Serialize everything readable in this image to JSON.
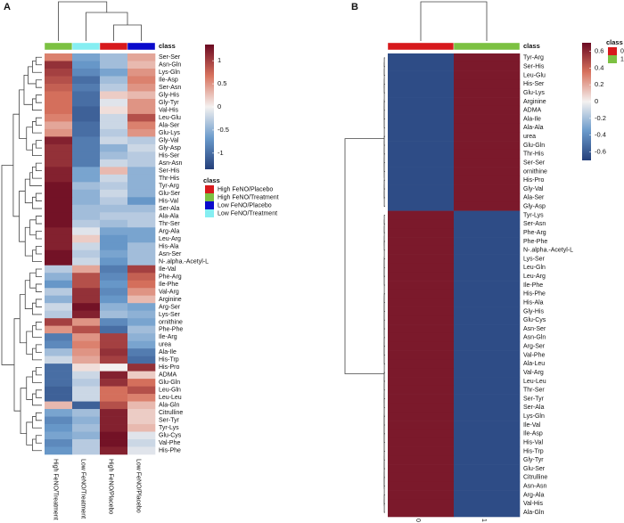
{
  "chart_data": [
    {
      "type": "heatmap",
      "panel_label": "A",
      "annotation_title": "class",
      "legend_title": "class",
      "columns": [
        "High FeNO/Treatment",
        "Low FeNO/Treatment",
        "High FeNO/Placebo",
        "Low FeNO/Placebo"
      ],
      "classes": [
        {
          "name": "High FeNO/Placebo",
          "color": "#d7191c"
        },
        {
          "name": "High FeNO/Treatment",
          "color": "#7cc142"
        },
        {
          "name": "Low FeNO/Placebo",
          "color": "#0a0acc"
        },
        {
          "name": "Low FeNO/Treatment",
          "color": "#86eef2"
        }
      ],
      "rows": [
        "Ser-Ser",
        "Asn-Gln",
        "Lys-Gln",
        "Ile-Asp",
        "Ser-Asn",
        "Gly-His",
        "Gly-Tyr",
        "Val-His",
        "Leu-Glu",
        "Ala-Ser",
        "Glu-Lys",
        "Gly-Val",
        "Gly-Asp",
        "His-Ser",
        "Asn-Asn",
        "Ser-His",
        "Thr-His",
        "Tyr-Arg",
        "Glu-Ser",
        "His-Val",
        "Ser-Ala",
        "Ala-Ala",
        "Thr-Ser",
        "Arg-Ala",
        "Leu-Arg",
        "His-Ala",
        "Asn-Ser",
        "N-.alpha.-Acetyl-L",
        "Ile-Val",
        "Phe-Arg",
        "Ile-Phe",
        "Val-Arg",
        "Arginine",
        "Arg-Ser",
        "Lys-Ser",
        "ornithine",
        "Phe-Phe",
        "Ile-Arg",
        "urea",
        "Ala-Ile",
        "His-Trp",
        "His-Pro",
        "ADMA",
        "Glu-Gln",
        "Leu-Gln",
        "Leu-Leu",
        "Ala-Gln",
        "Citrulline",
        "Ser-Tyr",
        "Tyr-Lys",
        "Glu-Cys",
        "Val-Phe",
        "His-Phe"
      ],
      "values": [
        [
          0.6,
          -0.6,
          -0.4,
          0.4
        ],
        [
          1.1,
          -0.7,
          -0.4,
          0.3
        ],
        [
          1.0,
          -0.8,
          -0.6,
          0.5
        ],
        [
          0.9,
          -1.0,
          -0.4,
          0.6
        ],
        [
          0.8,
          -0.9,
          -0.3,
          0.5
        ],
        [
          0.7,
          -1.0,
          0.2,
          0.3
        ],
        [
          0.7,
          -1.0,
          -0.1,
          0.5
        ],
        [
          0.7,
          -1.1,
          0.1,
          0.5
        ],
        [
          0.6,
          -1.1,
          -0.2,
          0.9
        ],
        [
          0.4,
          -1.0,
          -0.2,
          0.6
        ],
        [
          0.5,
          -1.0,
          -0.3,
          0.5
        ],
        [
          1.2,
          -0.9,
          -0.2,
          -0.3
        ],
        [
          1.1,
          -0.9,
          -0.5,
          -0.2
        ],
        [
          1.1,
          -0.9,
          -0.4,
          -0.3
        ],
        [
          1.1,
          -0.9,
          -0.2,
          -0.3
        ],
        [
          1.2,
          -0.6,
          0.3,
          -0.5
        ],
        [
          1.2,
          -0.6,
          -0.2,
          -0.5
        ],
        [
          1.3,
          -0.4,
          -0.3,
          -0.5
        ],
        [
          1.3,
          -0.5,
          -0.2,
          -0.5
        ],
        [
          1.3,
          -0.5,
          -0.3,
          -0.7
        ],
        [
          1.3,
          -0.4,
          -0.4,
          -0.4
        ],
        [
          1.3,
          -0.4,
          -0.3,
          -0.3
        ],
        [
          1.3,
          -0.3,
          -0.4,
          -0.3
        ],
        [
          1.2,
          -0.1,
          -0.6,
          -0.6
        ],
        [
          1.2,
          0.2,
          -0.7,
          -0.6
        ],
        [
          1.2,
          -0.2,
          -0.7,
          -0.4
        ],
        [
          1.3,
          -0.3,
          -0.6,
          -0.4
        ],
        [
          1.3,
          -0.2,
          -0.7,
          -0.4
        ],
        [
          -0.3,
          0.4,
          -0.9,
          1.0
        ],
        [
          -0.5,
          0.9,
          -0.8,
          0.8
        ],
        [
          -0.7,
          0.9,
          -0.7,
          0.7
        ],
        [
          -0.3,
          1.1,
          -0.8,
          0.5
        ],
        [
          -0.5,
          1.1,
          -0.7,
          0.3
        ],
        [
          -0.2,
          1.3,
          -0.5,
          -0.6
        ],
        [
          -0.3,
          1.2,
          -0.4,
          -0.5
        ],
        [
          1.0,
          0.5,
          -0.8,
          -0.6
        ],
        [
          0.5,
          0.9,
          -1.0,
          -0.4
        ],
        [
          -0.9,
          0.5,
          1.0,
          -0.5
        ],
        [
          -0.8,
          0.6,
          1.0,
          -0.6
        ],
        [
          -0.4,
          0.5,
          1.1,
          -0.9
        ],
        [
          -0.2,
          0.4,
          1.0,
          -1.0
        ],
        [
          -1.0,
          0.1,
          0.0,
          1.1
        ],
        [
          -1.0,
          -0.2,
          1.2,
          0.2
        ],
        [
          -1.0,
          -0.3,
          1.1,
          0.7
        ],
        [
          -1.1,
          -0.2,
          0.7,
          0.9
        ],
        [
          -1.1,
          -0.2,
          0.7,
          0.6
        ],
        [
          0.3,
          -1.1,
          0.9,
          0.3
        ],
        [
          -0.6,
          -0.4,
          1.2,
          0.2
        ],
        [
          -0.8,
          -0.5,
          1.2,
          0.2
        ],
        [
          -0.7,
          -0.4,
          1.2,
          0.3
        ],
        [
          -0.6,
          -0.5,
          1.3,
          -0.1
        ],
        [
          -0.8,
          -0.3,
          1.3,
          -0.2
        ],
        [
          -0.7,
          -0.3,
          1.2,
          -0.1
        ]
      ],
      "colormap": [
        "#243f7a",
        "#6a9acb",
        "#f4f1f0",
        "#d8735e",
        "#6b0a22"
      ],
      "clim": [
        -1.35,
        1.35
      ],
      "cticks": [
        1,
        0.5,
        0,
        -0.5,
        -1
      ]
    },
    {
      "type": "heatmap",
      "panel_label": "B",
      "annotation_title": "class",
      "legend_title": "class",
      "columns": [
        "0",
        "1"
      ],
      "classes": [
        {
          "name": "0",
          "color": "#d7191c"
        },
        {
          "name": "1",
          "color": "#7cc142"
        }
      ],
      "rows": [
        "Tyr-Arg",
        "Ser-His",
        "Leu-Glu",
        "His-Ser",
        "Glu-Lys",
        "Arginine",
        "ADMA",
        "Ala-Ile",
        "Ala-Ala",
        "urea",
        "Glu-Gln",
        "Thr-His",
        "Ser-Ser",
        "ornithine",
        "His-Pro",
        "Gly-Val",
        "Ala-Ser",
        "Gly-Asp",
        "Tyr-Lys",
        "Ser-Asn",
        "Phe-Arg",
        "Phe-Phe",
        "N-.alpha.-Acetyl-L",
        "Lys-Ser",
        "Leu-Gln",
        "Leu-Arg",
        "Ile-Phe",
        "His-Phe",
        "His-Ala",
        "Gly-His",
        "Glu-Cys",
        "Asn-Ser",
        "Asn-Gln",
        "Arg-Ser",
        "Val-Phe",
        "Ala-Leu",
        "Val-Arg",
        "Leu-Leu",
        "Thr-Ser",
        "Ser-Tyr",
        "Ser-Ala",
        "Lys-Gln",
        "Ile-Val",
        "Ile-Asp",
        "His-Val",
        "His-Trp",
        "Gly-Tyr",
        "Glu-Ser",
        "Citrulline",
        "Asn-Asn",
        "Arg-Ala",
        "Val-His",
        "Ala-Gln"
      ],
      "values": [
        [
          -0.65,
          0.65
        ],
        [
          -0.65,
          0.65
        ],
        [
          -0.65,
          0.65
        ],
        [
          -0.65,
          0.65
        ],
        [
          -0.65,
          0.65
        ],
        [
          -0.65,
          0.65
        ],
        [
          -0.65,
          0.65
        ],
        [
          -0.65,
          0.65
        ],
        [
          -0.65,
          0.65
        ],
        [
          -0.65,
          0.65
        ],
        [
          -0.65,
          0.65
        ],
        [
          -0.65,
          0.65
        ],
        [
          -0.65,
          0.65
        ],
        [
          -0.65,
          0.65
        ],
        [
          -0.65,
          0.65
        ],
        [
          -0.65,
          0.65
        ],
        [
          -0.65,
          0.65
        ],
        [
          -0.65,
          0.65
        ],
        [
          0.65,
          -0.65
        ],
        [
          0.65,
          -0.65
        ],
        [
          0.65,
          -0.65
        ],
        [
          0.65,
          -0.65
        ],
        [
          0.65,
          -0.65
        ],
        [
          0.65,
          -0.65
        ],
        [
          0.65,
          -0.65
        ],
        [
          0.65,
          -0.65
        ],
        [
          0.65,
          -0.65
        ],
        [
          0.65,
          -0.65
        ],
        [
          0.65,
          -0.65
        ],
        [
          0.65,
          -0.65
        ],
        [
          0.65,
          -0.65
        ],
        [
          0.65,
          -0.65
        ],
        [
          0.65,
          -0.65
        ],
        [
          0.65,
          -0.65
        ],
        [
          0.65,
          -0.65
        ],
        [
          0.65,
          -0.65
        ],
        [
          0.65,
          -0.65
        ],
        [
          0.65,
          -0.65
        ],
        [
          0.65,
          -0.65
        ],
        [
          0.65,
          -0.65
        ],
        [
          0.65,
          -0.65
        ],
        [
          0.65,
          -0.65
        ],
        [
          0.65,
          -0.65
        ],
        [
          0.65,
          -0.65
        ],
        [
          0.65,
          -0.65
        ],
        [
          0.65,
          -0.65
        ],
        [
          0.65,
          -0.65
        ],
        [
          0.65,
          -0.65
        ],
        [
          0.65,
          -0.65
        ],
        [
          0.65,
          -0.65
        ],
        [
          0.65,
          -0.65
        ],
        [
          0.65,
          -0.65
        ],
        [
          0.65,
          -0.65
        ]
      ],
      "colormap": [
        "#243f7a",
        "#6a9acb",
        "#f4f1f0",
        "#d8735e",
        "#6b0a22"
      ],
      "clim": [
        -0.7,
        0.7
      ],
      "cticks": [
        0.6,
        0.4,
        0.2,
        0,
        -0.2,
        -0.4,
        -0.6
      ]
    }
  ]
}
